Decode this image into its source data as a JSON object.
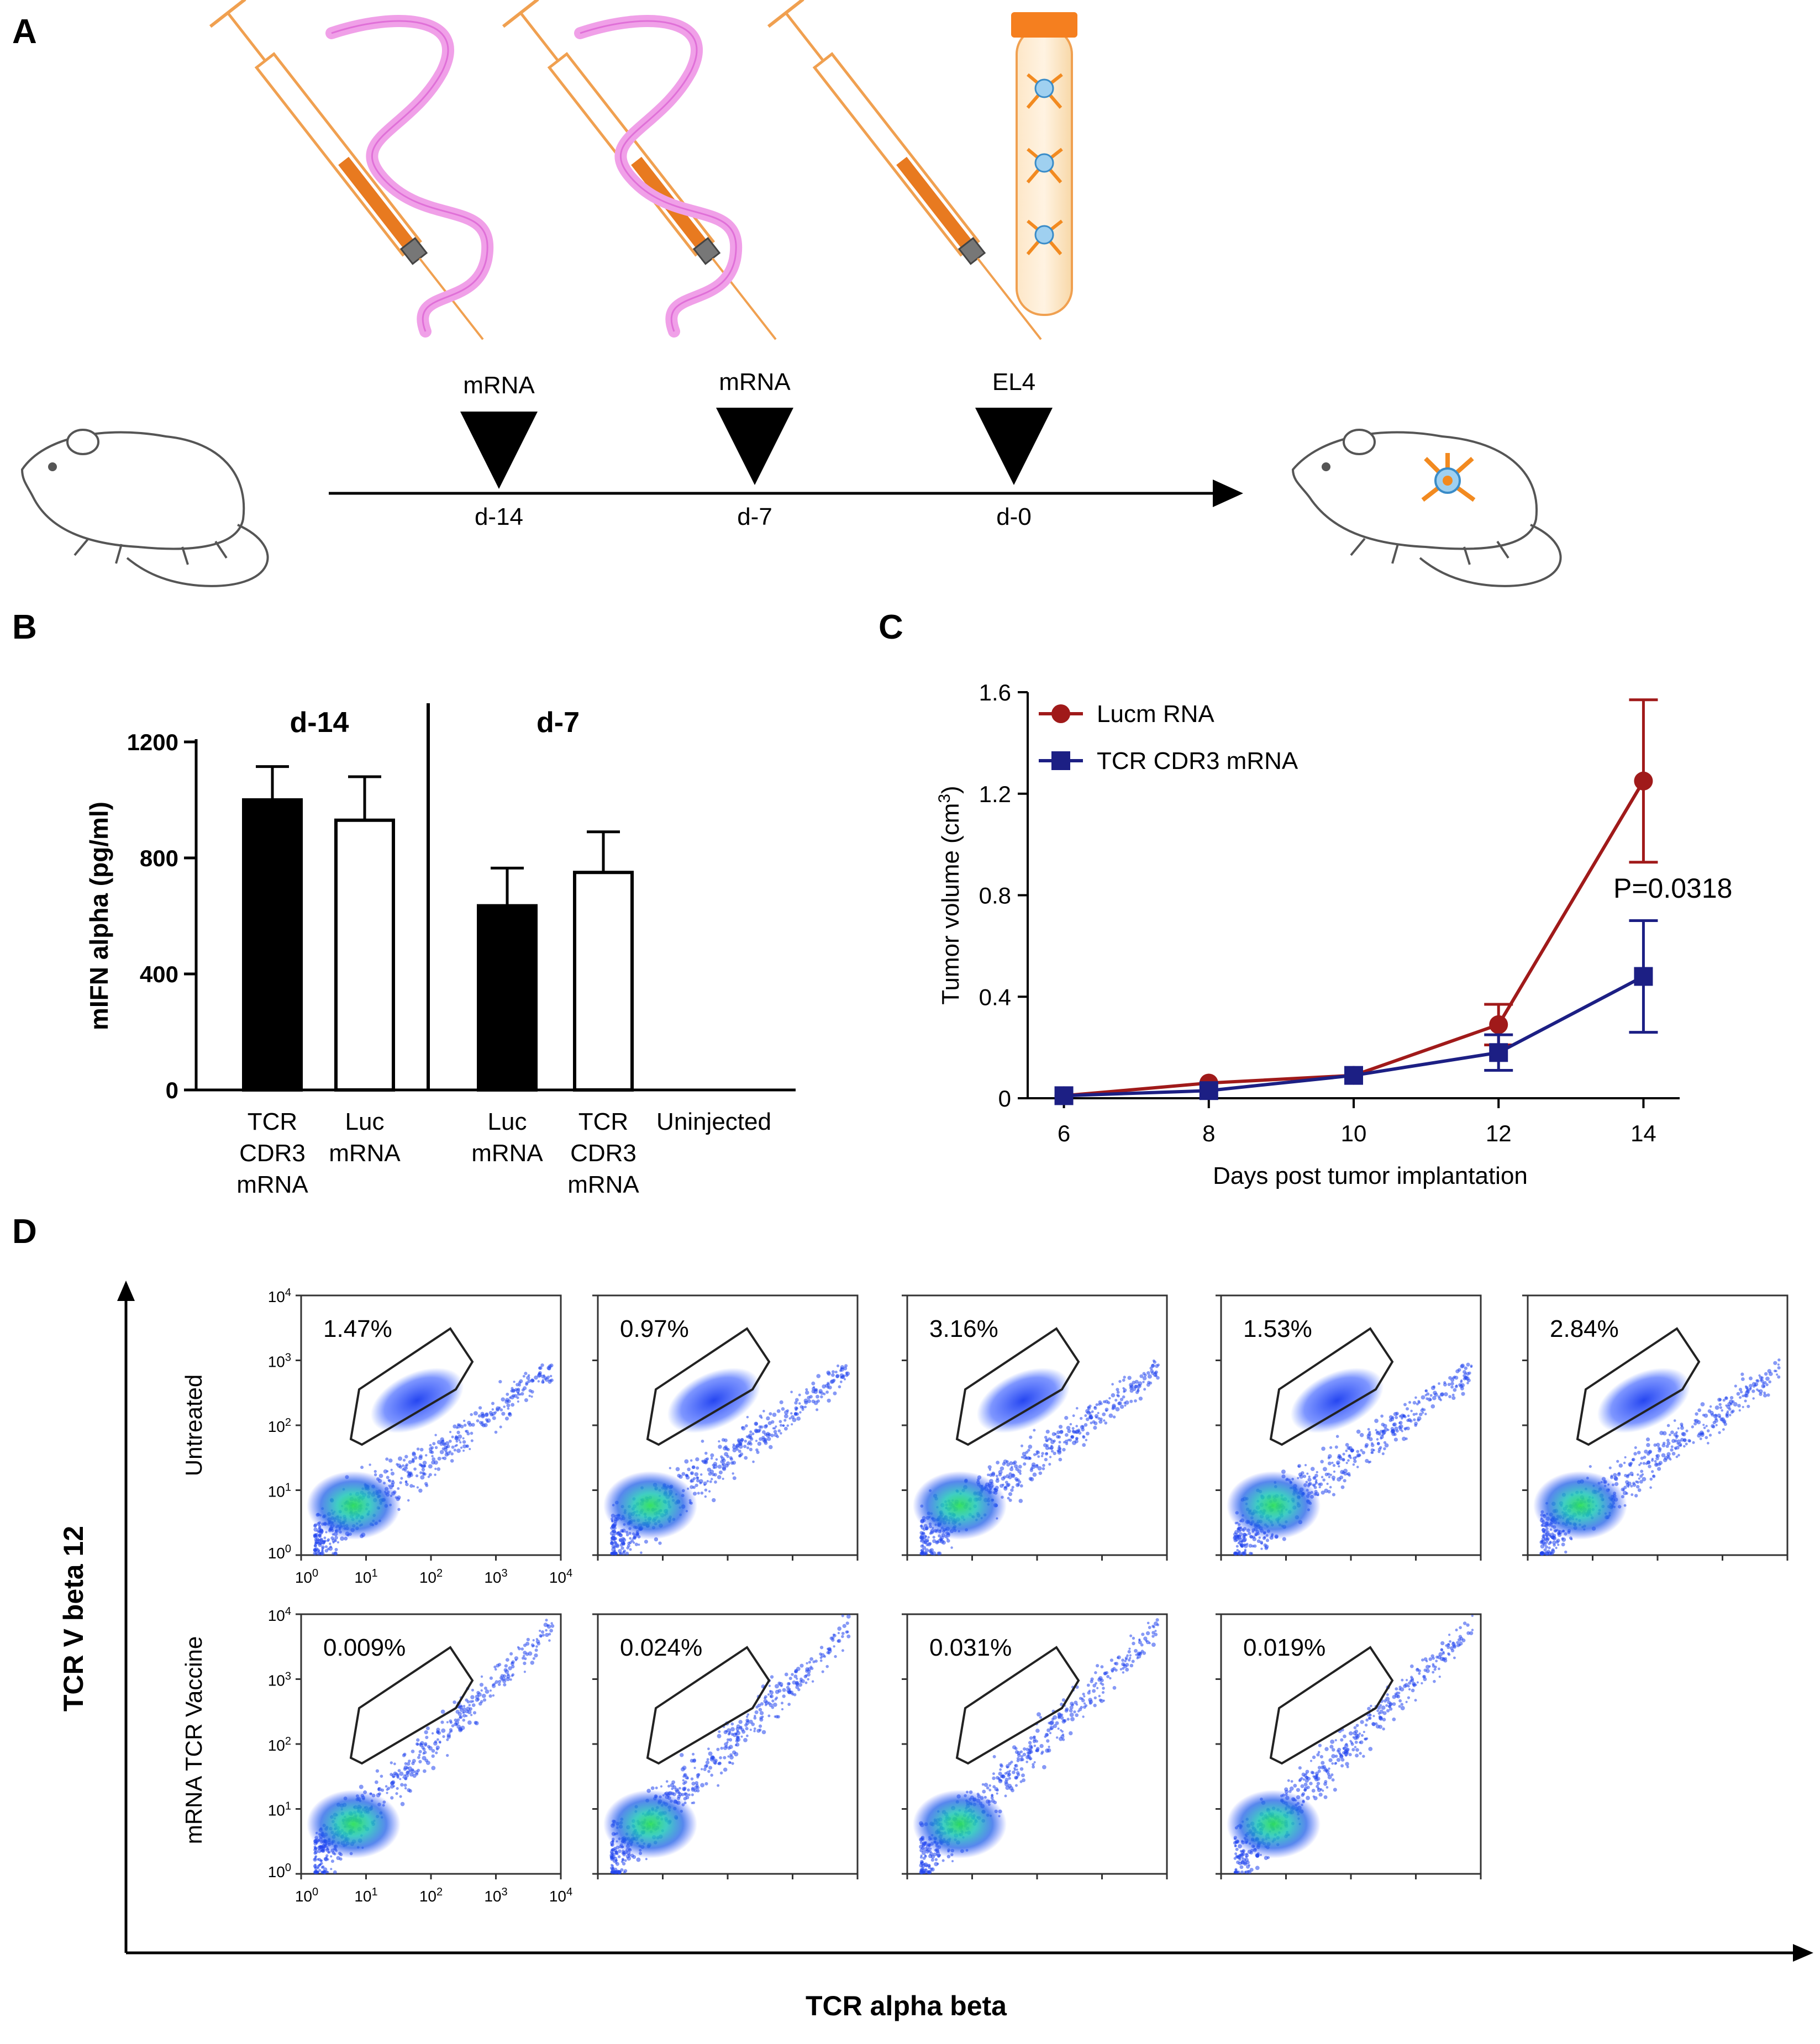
{
  "panels": {
    "a": {
      "letter": "A",
      "markers": [
        {
          "label": "mRNA",
          "day": "d-14"
        },
        {
          "label": "mRNA",
          "day": "d-7"
        },
        {
          "label": "EL4",
          "day": "d-0"
        }
      ]
    },
    "b": {
      "letter": "B"
    },
    "c": {
      "letter": "C"
    },
    "d": {
      "letter": "D"
    }
  },
  "chart_data": [
    {
      "id": "B",
      "type": "bar",
      "ylabel": "mIFN alpha (pg/ml)",
      "ylim": [
        0,
        1200
      ],
      "yticks": [
        "0",
        "400",
        "800",
        "1200"
      ],
      "groups": [
        "d-14",
        "d-7"
      ],
      "categories": [
        {
          "lines": [
            "TCR",
            "CDR3",
            "mRNA"
          ],
          "value": 1000,
          "error": 115,
          "fill": "#000000",
          "group": 0
        },
        {
          "lines": [
            "Luc",
            "mRNA"
          ],
          "value": 930,
          "error": 150,
          "fill": "#ffffff",
          "group": 0
        },
        {
          "lines": [
            "Luc",
            "mRNA"
          ],
          "value": 635,
          "error": 130,
          "fill": "#000000",
          "group": 1
        },
        {
          "lines": [
            "TCR",
            "CDR3",
            "mRNA"
          ],
          "value": 750,
          "error": 140,
          "fill": "#ffffff",
          "group": 1
        },
        {
          "lines": [
            "Uninjected"
          ],
          "value": 0,
          "error": 0,
          "fill": "#ffffff",
          "group": 1
        }
      ]
    },
    {
      "id": "C",
      "type": "line",
      "xlabel": "Days post tumor implantation",
      "ylabel_pre": "Tumor volume (cm",
      "ylabel_sup": "3",
      "ylabel_post": ")",
      "xlim": [
        5.5,
        14.5
      ],
      "ylim": [
        0,
        1.6
      ],
      "xticks": [
        6,
        8,
        10,
        12,
        14
      ],
      "yticks": [
        "0",
        "0.4",
        "0.8",
        "1.2",
        "1.6"
      ],
      "annotation": "P=0.0318",
      "series": [
        {
          "name": "Lucm RNA",
          "color": "#a01a1a",
          "marker": "circle",
          "x": [
            6,
            8,
            10,
            12,
            14
          ],
          "y": [
            0.01,
            0.06,
            0.09,
            0.29,
            1.25
          ],
          "err": [
            0.0,
            0.0,
            0.0,
            0.08,
            0.32
          ]
        },
        {
          "name": "TCR CDR3 mRNA",
          "color": "#1c1f84",
          "marker": "square",
          "x": [
            6,
            8,
            10,
            12,
            14
          ],
          "y": [
            0.01,
            0.03,
            0.09,
            0.18,
            0.48
          ],
          "err": [
            0.0,
            0.0,
            0.0,
            0.07,
            0.22
          ]
        }
      ]
    },
    {
      "id": "D",
      "type": "scatter",
      "xlabel": "TCR alpha beta",
      "ylabel": "TCR V beta 12",
      "rows": [
        {
          "label": "Untreated",
          "percents": [
            "1.47%",
            "0.97%",
            "3.16%",
            "1.53%",
            "2.84%"
          ]
        },
        {
          "label": "mRNA TCR Vaccine",
          "percents": [
            "0.009%",
            "0.024%",
            "0.031%",
            "0.019%"
          ]
        }
      ],
      "tick_bases": [
        "10",
        "10",
        "10",
        "10",
        "10"
      ],
      "tick_exps": [
        "0",
        "1",
        "2",
        "3",
        "4"
      ]
    }
  ]
}
